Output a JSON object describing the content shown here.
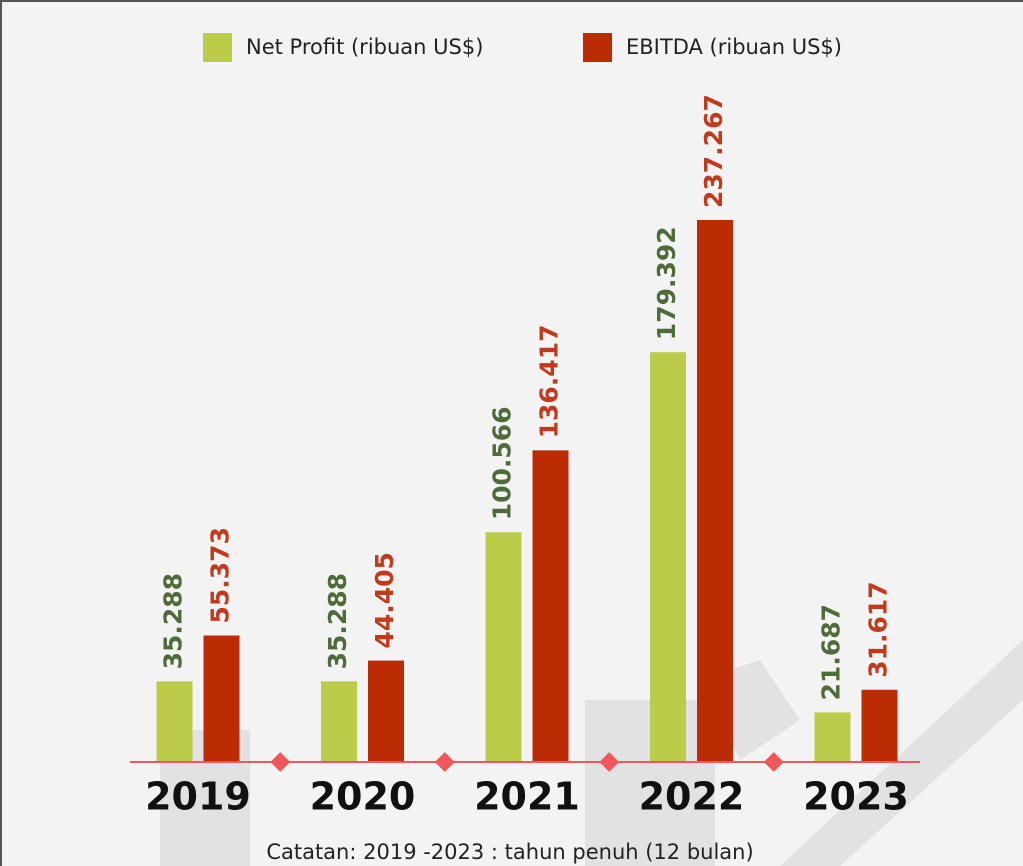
{
  "chart_data": {
    "type": "bar",
    "categories": [
      "2019",
      "2020",
      "2021",
      "2022",
      "2023"
    ],
    "series": [
      {
        "name": "Net Profit (ribuan US$)",
        "color": "#bccb4a",
        "label_color": "#4f6b3a",
        "values": [
          35288,
          35288,
          100566,
          179392,
          21687
        ],
        "value_labels": [
          "35.288",
          "35.288",
          "100.566",
          "179.392",
          "21.687"
        ]
      },
      {
        "name": "EBITDA (ribuan US$)",
        "color": "#bb2b04",
        "label_color": "#c23a1c",
        "values": [
          55373,
          44405,
          136417,
          237267,
          31617
        ],
        "value_labels": [
          "55.373",
          "44.405",
          "136.417",
          "237.267",
          "31.617"
        ]
      }
    ],
    "note": "Catatan: 2019 -2023 : tahun penuh (12 bulan)"
  }
}
